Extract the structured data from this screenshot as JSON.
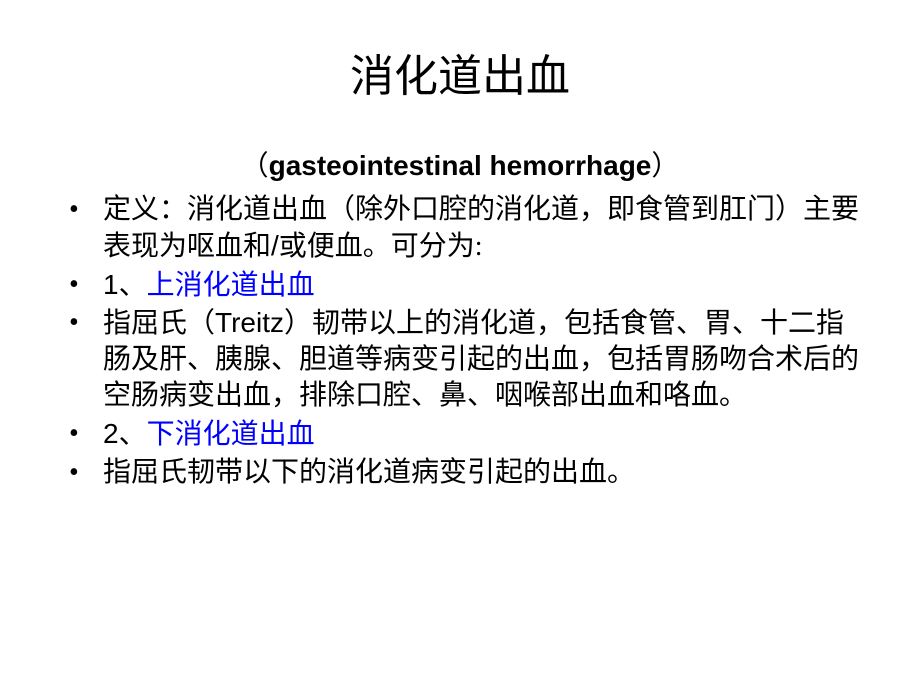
{
  "slide": {
    "title": "消化道出血",
    "subtitle_left_paren": "（",
    "subtitle_text": "gasteointestinal hemorrhage",
    "subtitle_right_paren": "）",
    "bullets": [
      {
        "prefix": "定义：消化道出血（除外口腔的消化道，即食管到肛门）主要表现为呕血和",
        "latin": "/",
        "suffix": "或便血。可分为:",
        "has_blue": false
      },
      {
        "prefix": "1、",
        "blue_text": "上消化道出血",
        "has_blue": true
      },
      {
        "prefix": "指屈氏（",
        "latin": "Treitz",
        "suffix": "）韧带以上的消化道，包括食管、胃、十二指肠及肝、胰腺、胆道等病变引起的出血，包括胃肠吻合术后的空肠病变出血，排除口腔、鼻、咽喉部出血和咯血。",
        "has_blue": false
      },
      {
        "prefix": "2、",
        "blue_text": "下消化道出血",
        "has_blue": true
      },
      {
        "text": " 指屈氏韧带以下的消化道病变引起的出血。",
        "has_blue": false
      }
    ],
    "colors": {
      "background": "#ffffff",
      "text": "#000000",
      "link": "#0000ff"
    },
    "typography": {
      "title_fontsize": 44,
      "subtitle_fontsize": 28,
      "body_fontsize": 28,
      "line_height": 1.28
    }
  }
}
